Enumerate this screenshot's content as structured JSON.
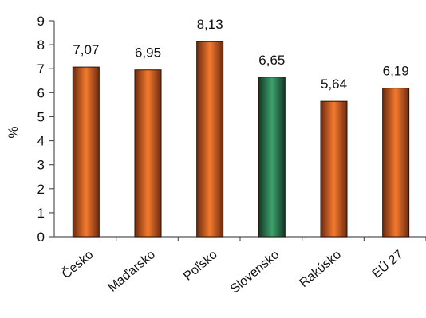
{
  "chart_data": {
    "type": "bar",
    "title": "",
    "xlabel": "",
    "ylabel": "%",
    "ylim": [
      0,
      9
    ],
    "yticks": [
      0,
      1,
      2,
      3,
      4,
      5,
      6,
      7,
      8,
      9
    ],
    "grid": false,
    "legend": "none",
    "categories": [
      "Česko",
      "Maďarsko",
      "Poľsko",
      "Slovensko",
      "Rakúsko",
      "EÚ 27"
    ],
    "values": [
      7.07,
      6.95,
      8.13,
      6.65,
      5.64,
      6.19
    ],
    "value_labels": [
      "7,07",
      "6,95",
      "8,13",
      "6,65",
      "5,64",
      "6,19"
    ],
    "bar_styles": [
      "orange-gradient",
      "orange-gradient",
      "orange-gradient",
      "green-gradient",
      "orange-gradient",
      "orange-gradient"
    ],
    "colors": {
      "orange_edge": "#6b2a10",
      "orange_center": "#f57a2e",
      "green_edge": "#0f3a26",
      "green_center": "#3fa06c",
      "axis": "#555555"
    }
  }
}
